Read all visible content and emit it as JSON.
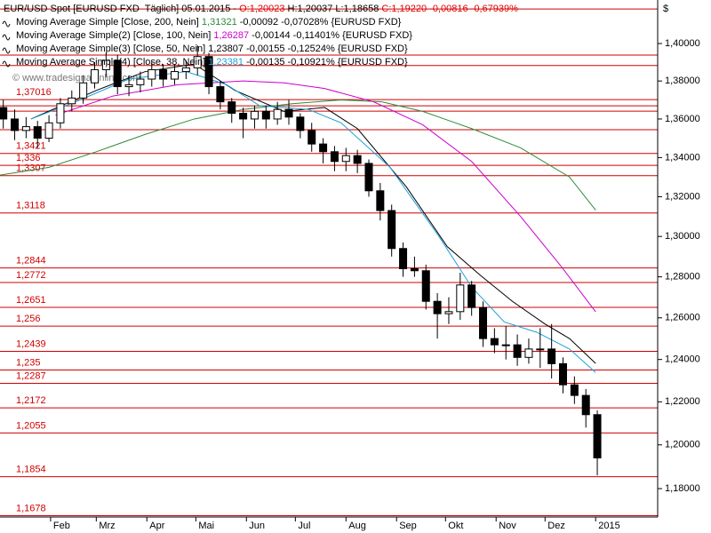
{
  "chart_data": {
    "type": "candlestick",
    "info_lines": [
      [
        {
          "text": "EUR/USD Spot [EURUSD FXD  Täglich] 05.01.2015 - ",
          "color": "#000000"
        },
        {
          "text": "O:1,20023",
          "color": "#e00000"
        },
        {
          "text": " H:1,20037 L:1,18658 ",
          "color": "#000000"
        },
        {
          "text": "C:1,19220 -0,00816 -0,67939%",
          "color": "#e00000"
        }
      ],
      [
        {
          "text": "Moving Average Simple [Close, 200, Nein] ",
          "color": "#000000"
        },
        {
          "text": "1,31321",
          "color": "#2e8b3a"
        },
        {
          "text": " -0,00092 -0,07028% {EURUSD FXD}",
          "color": "#000000"
        }
      ],
      [
        {
          "text": "Moving Average Simple(2) [Close, 100, Nein] ",
          "color": "#000000"
        },
        {
          "text": "1,26287",
          "color": "#cc00cc"
        },
        {
          "text": " -0,00144 -0,11401% {EURUSD FXD}",
          "color": "#000000"
        }
      ],
      [
        {
          "text": "Moving Average Simple(3) [Close, 50, Nein] ",
          "color": "#000000"
        },
        {
          "text": "1,23807",
          "color": "#000000"
        },
        {
          "text": " -0,00155 -0,12524% {EURUSD FXD}",
          "color": "#000000"
        }
      ],
      [
        {
          "text": "Moving Average Simple(4) [Close, 38, Nein] ",
          "color": "#000000"
        },
        {
          "text": "1,23381",
          "color": "#1ca0d8"
        },
        {
          "text": " -0,00135 -0,10921% {EURUSD FXD}",
          "color": "#000000"
        }
      ]
    ],
    "watermark": "© www.tradesignalonline.com",
    "currency": "$",
    "log_scale": true,
    "xlim": [
      1,
      404
    ],
    "ylim": [
      1.1672,
      1.4236
    ],
    "xticks": [
      {
        "value": 32,
        "label": "Feb"
      },
      {
        "value": 60,
        "label": "Mrz"
      },
      {
        "value": 91,
        "label": "Apr"
      },
      {
        "value": 121,
        "label": "Mai"
      },
      {
        "value": 152,
        "label": "Jun"
      },
      {
        "value": 182,
        "label": "Jul"
      },
      {
        "value": 213,
        "label": "Aug"
      },
      {
        "value": 244,
        "label": "Sep"
      },
      {
        "value": 274,
        "label": "Okt"
      },
      {
        "value": 305,
        "label": "Nov"
      },
      {
        "value": 335,
        "label": "Dez"
      },
      {
        "value": 366,
        "label": "2015"
      }
    ],
    "yticks": [
      {
        "value": 1.18,
        "label": "1,18000"
      },
      {
        "value": 1.2,
        "label": "1,20000"
      },
      {
        "value": 1.22,
        "label": "1,22000"
      },
      {
        "value": 1.24,
        "label": "1,24000"
      },
      {
        "value": 1.26,
        "label": "1,26000"
      },
      {
        "value": 1.28,
        "label": "1,28000"
      },
      {
        "value": 1.3,
        "label": "1,30000"
      },
      {
        "value": 1.32,
        "label": "1,32000"
      },
      {
        "value": 1.34,
        "label": "1,34000"
      },
      {
        "value": 1.36,
        "label": "1,36000"
      },
      {
        "value": 1.38,
        "label": "1,38000"
      },
      {
        "value": 1.4,
        "label": "1,40000"
      }
    ],
    "level_color": "#d00000",
    "levels": [
      1.4187,
      1.3938,
      1.3882,
      1.37016,
      1.3669,
      1.3641,
      1.3544,
      1.3421,
      1.336,
      1.3307,
      1.3118,
      1.2844,
      1.2772,
      1.2651,
      1.256,
      1.2439,
      1.235,
      1.2287,
      1.2172,
      1.2055,
      1.1854,
      1.1678
    ],
    "level_labels": [
      null,
      null,
      null,
      "1,37016",
      null,
      null,
      null,
      "1,3421",
      "1,336",
      "1,3307",
      "1,3118",
      "1,2844",
      "1,2772",
      "1,2651",
      "1,256",
      "1,2439",
      "1,235",
      "1,2287",
      "1,2172",
      "1,2055",
      "1,1854",
      "1,1678"
    ],
    "up_color": "#ffffff",
    "down_color": "#000000",
    "x": [
      3,
      10,
      17,
      24,
      31,
      38,
      45,
      52,
      59,
      66,
      73,
      80,
      87,
      94,
      101,
      108,
      115,
      122,
      129,
      136,
      143,
      150,
      157,
      164,
      171,
      178,
      185,
      192,
      199,
      206,
      213,
      220,
      227,
      234,
      241,
      248,
      255,
      262,
      269,
      276,
      283,
      290,
      297,
      304,
      311,
      318,
      325,
      332,
      339,
      346,
      353,
      360,
      367
    ],
    "open": [
      1.366,
      1.36,
      1.354,
      1.356,
      1.35,
      1.358,
      1.368,
      1.371,
      1.379,
      1.386,
      1.391,
      1.377,
      1.378,
      1.381,
      1.386,
      1.381,
      1.385,
      1.387,
      1.393,
      1.377,
      1.369,
      1.363,
      1.36,
      1.364,
      1.36,
      1.365,
      1.361,
      1.354,
      1.347,
      1.343,
      1.338,
      1.341,
      1.337,
      1.323,
      1.313,
      1.294,
      1.284,
      1.283,
      1.268,
      1.262,
      1.263,
      1.276,
      1.265,
      1.25,
      1.247,
      1.247,
      1.241,
      1.245,
      1.245,
      1.238,
      1.228,
      1.223,
      1.214
    ],
    "high": [
      1.37,
      1.365,
      1.361,
      1.359,
      1.362,
      1.371,
      1.375,
      1.383,
      1.39,
      1.395,
      1.394,
      1.383,
      1.385,
      1.39,
      1.389,
      1.389,
      1.391,
      1.399,
      1.395,
      1.38,
      1.371,
      1.366,
      1.367,
      1.367,
      1.369,
      1.37,
      1.363,
      1.358,
      1.35,
      1.346,
      1.345,
      1.344,
      1.339,
      1.327,
      1.316,
      1.297,
      1.29,
      1.286,
      1.272,
      1.27,
      1.282,
      1.278,
      1.268,
      1.255,
      1.256,
      1.252,
      1.25,
      1.255,
      1.257,
      1.241,
      1.232,
      1.226,
      1.216
    ],
    "low": [
      1.355,
      1.349,
      1.35,
      1.345,
      1.348,
      1.355,
      1.364,
      1.368,
      1.376,
      1.382,
      1.373,
      1.372,
      1.374,
      1.377,
      1.377,
      1.378,
      1.381,
      1.383,
      1.373,
      1.365,
      1.358,
      1.35,
      1.355,
      1.355,
      1.357,
      1.357,
      1.35,
      1.343,
      1.337,
      1.333,
      1.333,
      1.332,
      1.32,
      1.308,
      1.29,
      1.28,
      1.28,
      1.264,
      1.25,
      1.257,
      1.259,
      1.261,
      1.246,
      1.243,
      1.24,
      1.237,
      1.238,
      1.236,
      1.231,
      1.224,
      1.219,
      1.208,
      1.186
    ],
    "close": [
      1.36,
      1.354,
      1.356,
      1.35,
      1.358,
      1.368,
      1.371,
      1.379,
      1.386,
      1.391,
      1.377,
      1.378,
      1.381,
      1.386,
      1.381,
      1.385,
      1.387,
      1.393,
      1.377,
      1.369,
      1.363,
      1.36,
      1.364,
      1.36,
      1.365,
      1.361,
      1.354,
      1.347,
      1.343,
      1.338,
      1.341,
      1.337,
      1.323,
      1.313,
      1.294,
      1.284,
      1.283,
      1.268,
      1.262,
      1.263,
      1.276,
      1.265,
      1.25,
      1.247,
      1.247,
      1.241,
      1.245,
      1.245,
      1.238,
      1.228,
      1.223,
      1.214,
      1.194
    ],
    "series": [
      {
        "color": "#2e8b3a",
        "x": [
          1,
          31,
          60,
          90,
          120,
          150,
          180,
          210,
          235,
          260,
          290,
          320,
          350,
          366
        ],
        "values": [
          1.331,
          1.335,
          1.343,
          1.352,
          1.36,
          1.365,
          1.368,
          1.37,
          1.369,
          1.364,
          1.355,
          1.345,
          1.33,
          1.3132
        ]
      },
      {
        "color": "#cc00cc",
        "x": [
          35,
          70,
          110,
          150,
          175,
          200,
          230,
          260,
          290,
          320,
          345,
          366
        ],
        "values": [
          1.362,
          1.372,
          1.378,
          1.38,
          1.379,
          1.376,
          1.369,
          1.357,
          1.338,
          1.31,
          1.285,
          1.2629
        ]
      },
      {
        "color": "#000000",
        "x": [
          20,
          60,
          90,
          120,
          145,
          175,
          200,
          220,
          250,
          275,
          295,
          315,
          335,
          350,
          366
        ],
        "values": [
          1.36,
          1.375,
          1.385,
          1.389,
          1.375,
          1.364,
          1.366,
          1.355,
          1.325,
          1.295,
          1.281,
          1.268,
          1.257,
          1.25,
          1.2381
        ]
      },
      {
        "color": "#1ca0d8",
        "x": [
          20,
          50,
          80,
          115,
          140,
          160,
          190,
          210,
          240,
          270,
          290,
          310,
          330,
          350,
          366
        ],
        "values": [
          1.36,
          1.37,
          1.381,
          1.385,
          1.378,
          1.367,
          1.365,
          1.358,
          1.335,
          1.3,
          1.275,
          1.258,
          1.253,
          1.245,
          1.2338
        ]
      }
    ]
  }
}
